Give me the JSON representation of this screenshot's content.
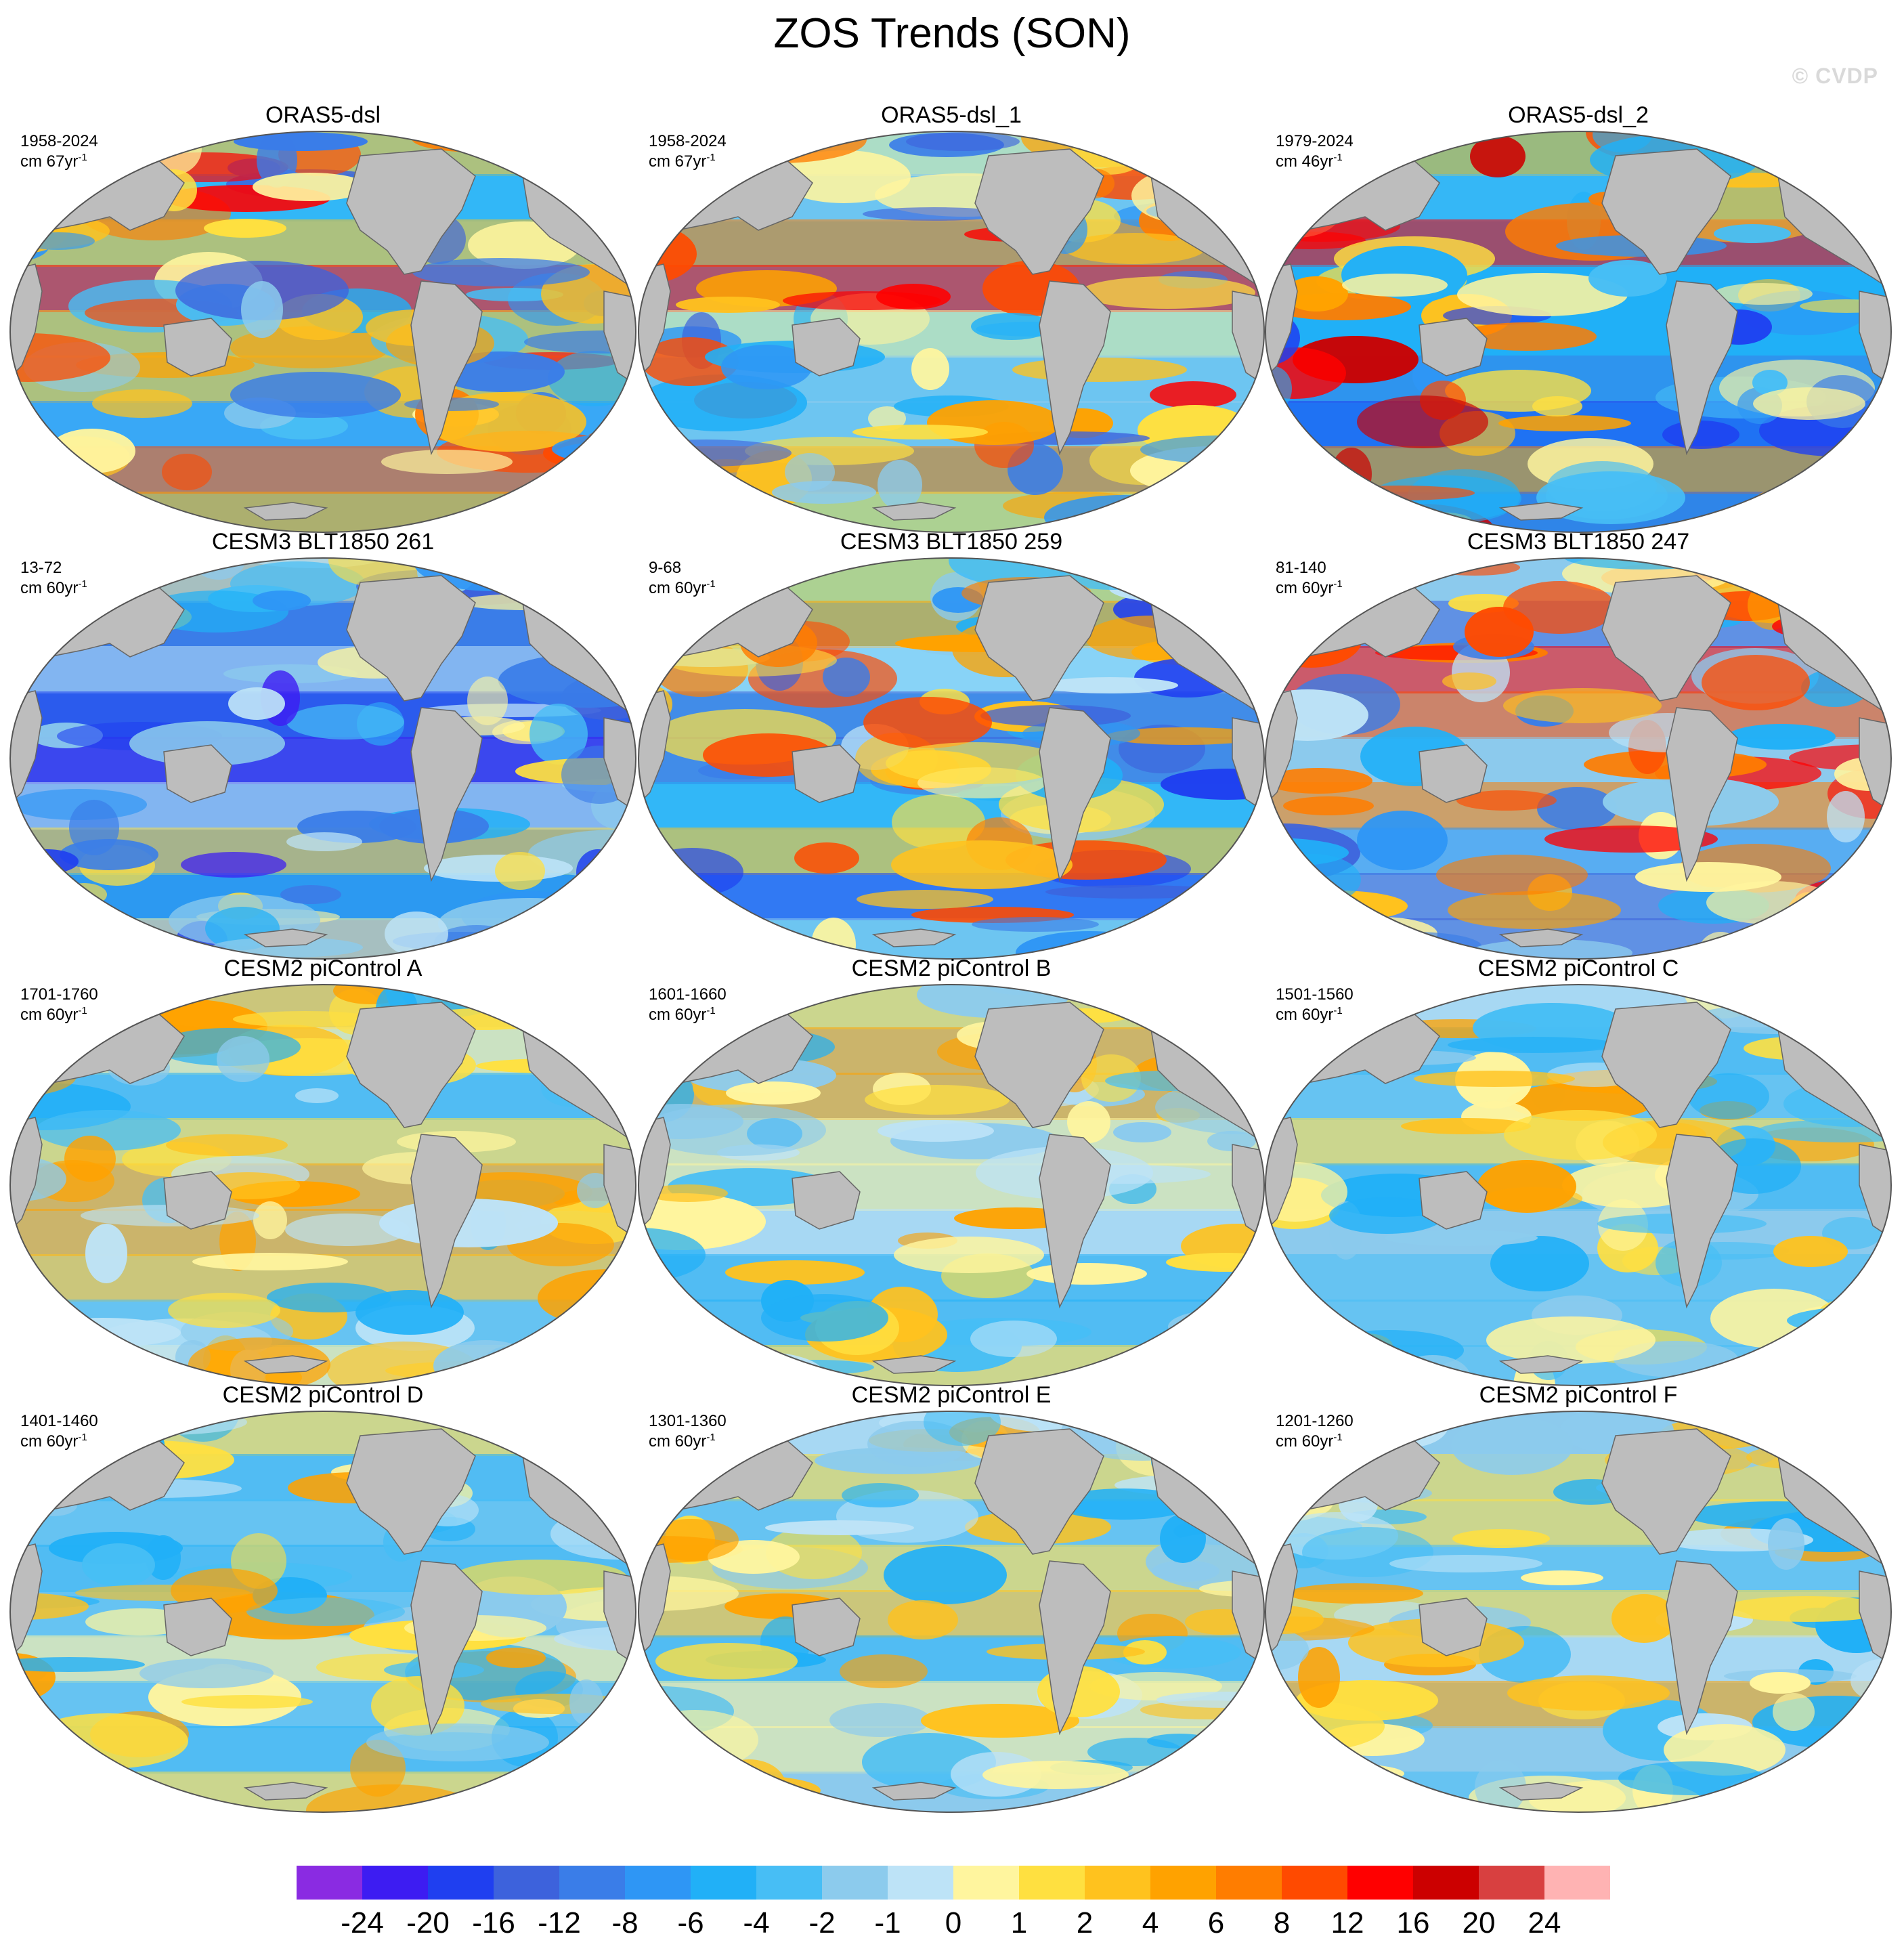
{
  "title": "ZOS Trends (SON)",
  "watermark": "© CVDP",
  "panels": [
    {
      "title": "ORAS5-dsl",
      "years": "1958-2024",
      "units_prefix": "cm 67yr",
      "units_exp": "-1",
      "style": "strong"
    },
    {
      "title": "ORAS5-dsl_1",
      "years": "1958-2024",
      "units_prefix": "cm 67yr",
      "units_exp": "-1",
      "style": "strong"
    },
    {
      "title": "ORAS5-dsl_2",
      "years": "1979-2024",
      "units_prefix": "cm 46yr",
      "units_exp": "-1",
      "style": "strong2"
    },
    {
      "title": "CESM3 BLT1850 261",
      "years": "13-72",
      "units_prefix": "cm 60yr",
      "units_exp": "-1",
      "style": "neg"
    },
    {
      "title": "CESM3 BLT1850 259",
      "years": "9-68",
      "units_prefix": "cm 60yr",
      "units_exp": "-1",
      "style": "mixed"
    },
    {
      "title": "CESM3 BLT1850 247",
      "years": "81-140",
      "units_prefix": "cm 60yr",
      "units_exp": "-1",
      "style": "pos"
    },
    {
      "title": "CESM2 piControl A",
      "years": "1701-1760",
      "units_prefix": "cm 60yr",
      "units_exp": "-1",
      "style": "weak"
    },
    {
      "title": "CESM2 piControl B",
      "years": "1601-1660",
      "units_prefix": "cm 60yr",
      "units_exp": "-1",
      "style": "weak"
    },
    {
      "title": "CESM2 piControl C",
      "years": "1501-1560",
      "units_prefix": "cm 60yr",
      "units_exp": "-1",
      "style": "weak"
    },
    {
      "title": "CESM2 piControl D",
      "years": "1401-1460",
      "units_prefix": "cm 60yr",
      "units_exp": "-1",
      "style": "weak"
    },
    {
      "title": "CESM2 piControl E",
      "years": "1301-1360",
      "units_prefix": "cm 60yr",
      "units_exp": "-1",
      "style": "weak"
    },
    {
      "title": "CESM2 piControl F",
      "years": "1201-1260",
      "units_prefix": "cm 60yr",
      "units_exp": "-1",
      "style": "weak"
    }
  ],
  "colorbar": {
    "colors": [
      "#8a2be2",
      "#3d1cf2",
      "#1f3ff0",
      "#3d62dc",
      "#3a7de8",
      "#2e96f5",
      "#21b0f7",
      "#47bef5",
      "#8ccbed",
      "#bde3f7",
      "#fff59e",
      "#ffe040",
      "#ffc21e",
      "#ffa200",
      "#ff7d00",
      "#ff4a00",
      "#ff0000",
      "#cc0000",
      "#d84040",
      "#ffb3b3"
    ],
    "labels": [
      "-24",
      "-20",
      "-16",
      "-12",
      "-8",
      "-6",
      "-4",
      "-2",
      "-1",
      "0",
      "1",
      "2",
      "4",
      "6",
      "8",
      "12",
      "16",
      "20",
      "24"
    ]
  }
}
